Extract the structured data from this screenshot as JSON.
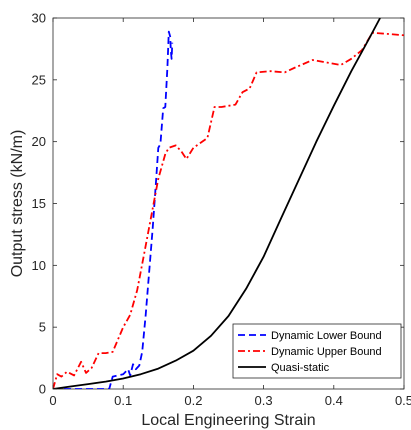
{
  "chart_data": {
    "type": "line",
    "xlabel": "Local Engineering Strain",
    "ylabel": "Output stress (kN/m)",
    "xlim": [
      0,
      0.5
    ],
    "ylim": [
      0,
      30
    ],
    "xticks": [
      0,
      0.1,
      0.2,
      0.3,
      0.4,
      0.5
    ],
    "xtick_labels": [
      "0",
      "0.1",
      "0.2",
      "0.3",
      "0.4",
      "0.5"
    ],
    "yticks": [
      0,
      5,
      10,
      15,
      20,
      25,
      30
    ],
    "ytick_labels": [
      "0",
      "5",
      "10",
      "15",
      "20",
      "25",
      "30"
    ],
    "grid": false,
    "legend_position": "bottom-right",
    "series": [
      {
        "name": "Dynamic Lower Bound",
        "color": "#0000ff",
        "style": "dashed",
        "points": [
          [
            0,
            0
          ],
          [
            0.04,
            0
          ],
          [
            0.08,
            0
          ],
          [
            0.085,
            1.0
          ],
          [
            0.1,
            1.2
          ],
          [
            0.107,
            1.6
          ],
          [
            0.11,
            1.1
          ],
          [
            0.114,
            2.0
          ],
          [
            0.118,
            1.6
          ],
          [
            0.123,
            1.9
          ],
          [
            0.127,
            3.0
          ],
          [
            0.132,
            6.0
          ],
          [
            0.137,
            9.5
          ],
          [
            0.142,
            13.0
          ],
          [
            0.147,
            17.0
          ],
          [
            0.15,
            19.5
          ],
          [
            0.153,
            19.8
          ],
          [
            0.157,
            22.7
          ],
          [
            0.16,
            22.8
          ],
          [
            0.163,
            26.0
          ],
          [
            0.165,
            28.9
          ],
          [
            0.167,
            28.5
          ],
          [
            0.168,
            27.3
          ],
          [
            0.169,
            26.7
          ],
          [
            0.17,
            28.0
          ]
        ]
      },
      {
        "name": "Dynamic Upper Bound",
        "color": "#ff0000",
        "style": "dashdot",
        "points": [
          [
            0,
            0
          ],
          [
            0.006,
            1.2
          ],
          [
            0.012,
            1.0
          ],
          [
            0.02,
            1.4
          ],
          [
            0.03,
            1.1
          ],
          [
            0.04,
            2.2
          ],
          [
            0.047,
            1.3
          ],
          [
            0.055,
            1.7
          ],
          [
            0.065,
            2.9
          ],
          [
            0.075,
            2.9
          ],
          [
            0.085,
            3.0
          ],
          [
            0.1,
            5.0
          ],
          [
            0.11,
            6.0
          ],
          [
            0.12,
            8.0
          ],
          [
            0.13,
            11.0
          ],
          [
            0.14,
            14.0
          ],
          [
            0.15,
            17.0
          ],
          [
            0.16,
            19.0
          ],
          [
            0.165,
            19.5
          ],
          [
            0.175,
            19.7
          ],
          [
            0.183,
            19.2
          ],
          [
            0.19,
            18.6
          ],
          [
            0.2,
            19.5
          ],
          [
            0.22,
            20.3
          ],
          [
            0.23,
            22.8
          ],
          [
            0.24,
            22.8
          ],
          [
            0.26,
            23.0
          ],
          [
            0.27,
            24.0
          ],
          [
            0.28,
            24.3
          ],
          [
            0.29,
            25.6
          ],
          [
            0.31,
            25.7
          ],
          [
            0.33,
            25.6
          ],
          [
            0.345,
            26.0
          ],
          [
            0.37,
            26.6
          ],
          [
            0.39,
            26.4
          ],
          [
            0.41,
            26.2
          ],
          [
            0.425,
            26.7
          ],
          [
            0.44,
            27.4
          ],
          [
            0.455,
            28.8
          ],
          [
            0.48,
            28.7
          ],
          [
            0.5,
            28.6
          ]
        ]
      },
      {
        "name": "Quasi-static",
        "color": "#000000",
        "style": "solid",
        "points": [
          [
            0,
            0
          ],
          [
            0.025,
            0.2
          ],
          [
            0.05,
            0.4
          ],
          [
            0.075,
            0.6
          ],
          [
            0.1,
            0.85
          ],
          [
            0.125,
            1.2
          ],
          [
            0.15,
            1.65
          ],
          [
            0.175,
            2.3
          ],
          [
            0.2,
            3.1
          ],
          [
            0.225,
            4.3
          ],
          [
            0.25,
            5.9
          ],
          [
            0.275,
            8.1
          ],
          [
            0.3,
            10.7
          ],
          [
            0.325,
            13.8
          ],
          [
            0.35,
            16.9
          ],
          [
            0.375,
            20.0
          ],
          [
            0.4,
            22.9
          ],
          [
            0.425,
            25.7
          ],
          [
            0.45,
            28.3
          ],
          [
            0.466,
            30.0
          ]
        ]
      }
    ]
  }
}
